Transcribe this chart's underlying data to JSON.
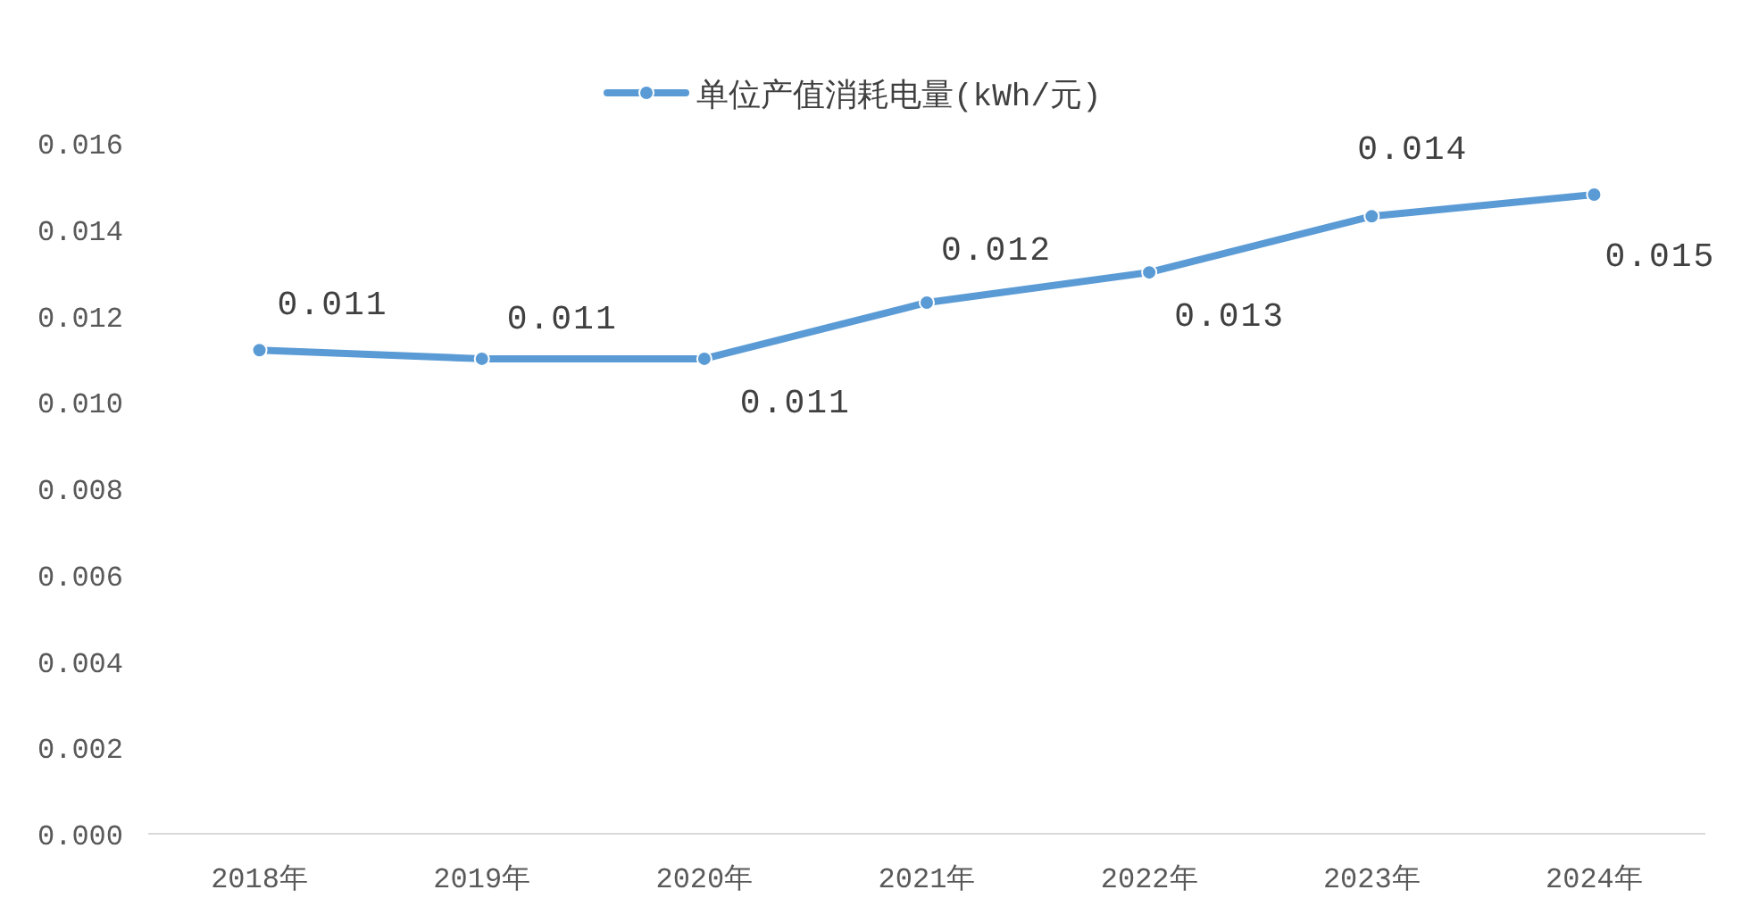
{
  "chart_data": {
    "type": "line",
    "legend": "top",
    "marker": "circle",
    "line_style": "solid",
    "categories": [
      "2018年",
      "2019年",
      "2020年",
      "2021年",
      "2022年",
      "2023年",
      "2024年"
    ],
    "ylim": [
      0,
      0.016
    ],
    "yticks": [
      {
        "value": 0,
        "label": "0.000"
      },
      {
        "value": 0.002,
        "label": "0.002"
      },
      {
        "value": 0.004,
        "label": "0.004"
      },
      {
        "value": 0.006,
        "label": "0.006"
      },
      {
        "value": 0.008,
        "label": "0.008"
      },
      {
        "value": 0.01,
        "label": "0.010"
      },
      {
        "value": 0.012,
        "label": "0.012"
      },
      {
        "value": 0.014,
        "label": "0.014"
      },
      {
        "value": 0.016,
        "label": "0.016"
      }
    ],
    "series": [
      {
        "name": "单位产值消耗电量(kWh/元)",
        "color": "#5b9bd5",
        "values": [
          0.0112,
          0.011,
          0.011,
          0.0123,
          0.013,
          0.0143,
          0.0148
        ],
        "value_labels": [
          "0.011",
          "0.011",
          "0.011",
          "0.012",
          "0.013",
          "0.014",
          "0.015"
        ]
      }
    ]
  }
}
